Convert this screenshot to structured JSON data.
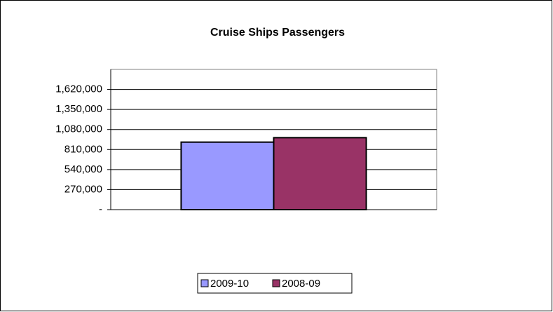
{
  "chart_data": {
    "type": "bar",
    "title": "Cruise Ships Passengers",
    "categories": [
      null
    ],
    "series": [
      {
        "name": "2009-10",
        "color": "#9999ff",
        "values": [
          910000
        ]
      },
      {
        "name": "2008-09",
        "color": "#993366",
        "values": [
          970000
        ]
      }
    ],
    "ylim": [
      0,
      1890000
    ],
    "yticks": [
      {
        "value": 0,
        "label": "-"
      },
      {
        "value": 270000,
        "label": "270,000"
      },
      {
        "value": 540000,
        "label": "540,000"
      },
      {
        "value": 810000,
        "label": "810,000"
      },
      {
        "value": 1080000,
        "label": "1,080,000"
      },
      {
        "value": 1350000,
        "label": "1,350,000"
      },
      {
        "value": 1620000,
        "label": "1,620,000"
      }
    ],
    "grid": true,
    "legend": "bottom"
  }
}
